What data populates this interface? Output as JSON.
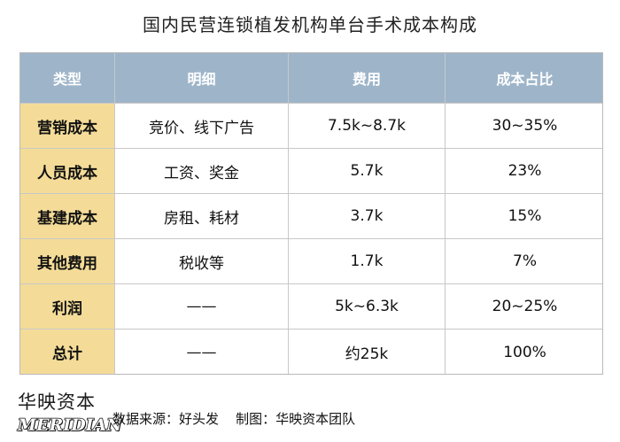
{
  "title": "国内民营连锁植发机构单台手术成本构成",
  "table": {
    "headers": [
      "类型",
      "明细",
      "费用",
      "成本占比"
    ],
    "rows": [
      [
        "营销成本",
        "竞价、线下广告",
        "7.5k~8.7k",
        "30~35%"
      ],
      [
        "人员成本",
        "工资、奖金",
        "5.7k",
        "23%"
      ],
      [
        "基建成本",
        "房租、耗材",
        "3.7k",
        "15%"
      ],
      [
        "其他费用",
        "税收等",
        "1.7k",
        "7%"
      ],
      [
        "利润",
        "——",
        "5k~6.3k",
        "20~25%"
      ],
      [
        "总计",
        "——",
        "约25k",
        "100%"
      ]
    ]
  },
  "footer": {
    "logo_cn": "华映资本",
    "logo_en": "MERIDIAN",
    "source": "数据来源：好头发    制图：华映资本团队"
  },
  "colors": {
    "header_bg": "#9eb5c9",
    "type_bg": "#f4dc98",
    "grid_line": "#c8c8c8"
  }
}
